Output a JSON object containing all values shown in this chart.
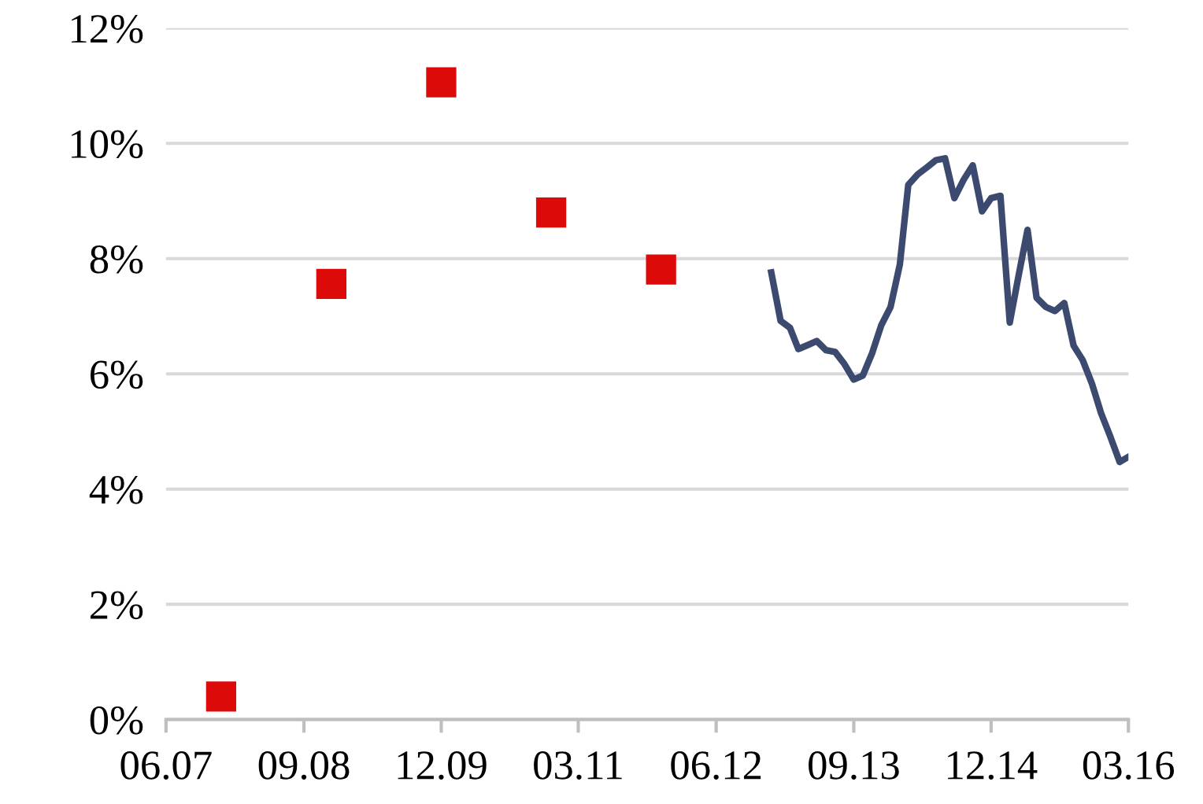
{
  "chart_data": {
    "type": "line",
    "series": [
      {
        "type": "scatter",
        "color": "#dd0a0a",
        "marker": "square",
        "x": [
          "2007-12",
          "2008-12",
          "2009-12",
          "2010-12",
          "2011-12"
        ],
        "values": [
          0.4,
          7.56,
          11.06,
          8.8,
          7.81
        ]
      },
      {
        "color": "#3b4a6e",
        "marker": "none",
        "line_style": "solid",
        "x": [
          "2012-12",
          "2013-01",
          "2013-02",
          "2013-03",
          "2013-04",
          "2013-05",
          "2013-06",
          "2013-07",
          "2013-08",
          "2013-09",
          "2013-10",
          "2013-11",
          "2013-12",
          "2014-01",
          "2014-02",
          "2014-03",
          "2014-04",
          "2014-05",
          "2014-06",
          "2014-07",
          "2014-08",
          "2014-09",
          "2014-10",
          "2014-11",
          "2014-12",
          "2015-01",
          "2015-02",
          "2015-03",
          "2015-04",
          "2015-05",
          "2015-06",
          "2015-07",
          "2015-08",
          "2015-09",
          "2015-10",
          "2015-11",
          "2015-12",
          "2016-01",
          "2016-02",
          "2016-03"
        ],
        "values": [
          7.76,
          6.92,
          6.8,
          6.43,
          6.5,
          6.57,
          6.41,
          6.38,
          6.17,
          5.9,
          5.97,
          6.36,
          6.84,
          7.16,
          7.9,
          9.28,
          9.46,
          9.58,
          9.71,
          9.74,
          9.05,
          9.37,
          9.62,
          8.82,
          9.05,
          9.09,
          6.89,
          7.67,
          8.5,
          7.32,
          7.16,
          7.09,
          7.23,
          6.49,
          6.24,
          5.83,
          5.32,
          4.91,
          4.47,
          4.56
        ]
      }
    ],
    "xlim": [
      "2007-06",
      "2016-03"
    ],
    "xticks": [
      {
        "value": "2007-06",
        "label": "06.07"
      },
      {
        "value": "2008-09",
        "label": "09.08"
      },
      {
        "value": "2009-12",
        "label": "12.09"
      },
      {
        "value": "2011-03",
        "label": "03.11"
      },
      {
        "value": "2012-06",
        "label": "06.12"
      },
      {
        "value": "2013-09",
        "label": "09.13"
      },
      {
        "value": "2014-12",
        "label": "12.14"
      },
      {
        "value": "2016-03",
        "label": "03.16"
      }
    ],
    "ylim": [
      0,
      12
    ],
    "yticks": [
      {
        "value": 0,
        "label": "0%"
      },
      {
        "value": 2,
        "label": "2%"
      },
      {
        "value": 4,
        "label": "4%"
      },
      {
        "value": 6,
        "label": "6%"
      },
      {
        "value": 8,
        "label": "8%"
      },
      {
        "value": 10,
        "label": "10%"
      },
      {
        "value": 12,
        "label": "12%"
      }
    ],
    "grid": "y",
    "legend": false
  }
}
